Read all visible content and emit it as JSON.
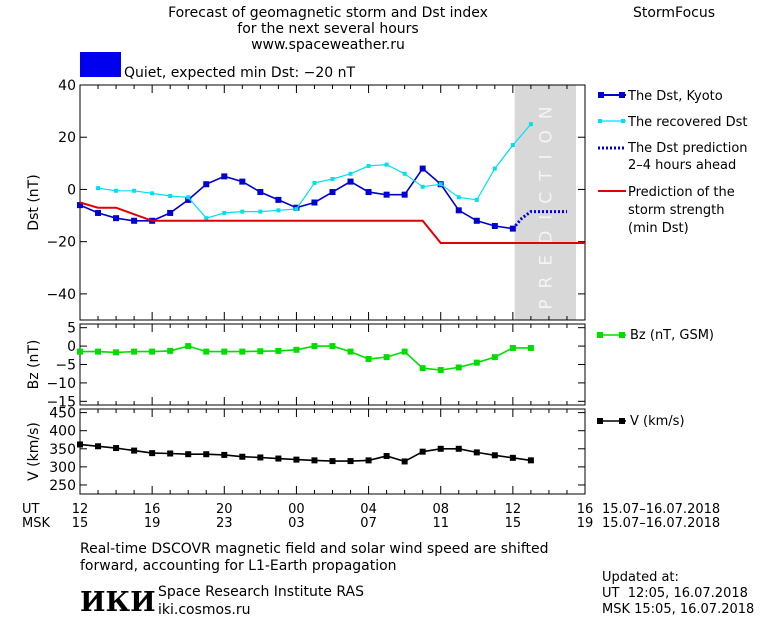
{
  "header": {
    "title_line1": "Forecast of geomagnetic storm and Dst index",
    "title_line2": "for the next several hours",
    "website": "www.spaceweather.ru",
    "brand": "StormFocus",
    "status_text": "Quiet, expected min Dst: −20 nT",
    "status_color": "#0000ee"
  },
  "prediction_label": "PREDICTION",
  "chart_data": [
    {
      "type": "line",
      "ylabel": "Dst (nT)",
      "ylim": [
        -50,
        40
      ],
      "yticks": [
        40,
        20,
        0,
        -20,
        -40
      ],
      "xlim": [
        12,
        40
      ],
      "prediction_zone": [
        36.1,
        39.5
      ],
      "series": [
        {
          "name": "The Dst, Kyoto",
          "color": "#0000d0",
          "marker": "square",
          "x": [
            12,
            13,
            14,
            15,
            16,
            17,
            18,
            19,
            20,
            21,
            22,
            23,
            24,
            25,
            26,
            27,
            28,
            29,
            30,
            31,
            32,
            33,
            34,
            35,
            36
          ],
          "values": [
            -6,
            -9,
            -11,
            -12,
            -12,
            -9,
            -4,
            2,
            5,
            3,
            -1,
            -4,
            -7,
            -5,
            -1,
            3,
            -1,
            -2,
            -2,
            8,
            2,
            -8,
            -12,
            -14,
            -15
          ]
        },
        {
          "name": "The recovered Dst",
          "color": "#00e0f0",
          "marker": "square-small",
          "x": [
            13,
            14,
            15,
            16,
            17,
            18,
            19,
            20,
            21,
            22,
            23,
            24,
            25,
            26,
            27,
            28,
            29,
            30,
            31,
            32,
            33,
            34,
            35,
            36,
            37
          ],
          "values": [
            0.5,
            -0.5,
            -0.5,
            -1.5,
            -2.5,
            -3,
            -11,
            -9,
            -8.5,
            -8.5,
            -8,
            -7.5,
            2.5,
            4,
            6,
            9,
            9.5,
            6,
            1,
            2,
            -3,
            -4,
            8,
            17,
            25
          ]
        },
        {
          "name": "The Dst prediction\n2–4 hours ahead",
          "color": "#0000d0",
          "style": "dotted",
          "x": [
            36,
            36.5,
            37,
            38,
            39
          ],
          "values": [
            -15,
            -11,
            -8.5,
            -8.5,
            -8.5
          ]
        },
        {
          "name": "Prediction of the\nstorm strength\n(min Dst)",
          "color": "#e00000",
          "style": "step",
          "x": [
            12,
            13,
            14,
            16,
            26,
            27,
            31,
            32,
            40
          ],
          "values": [
            -5,
            -7,
            -7,
            -12,
            -12,
            -12,
            -12,
            -20.5,
            -20.5
          ]
        }
      ]
    },
    {
      "type": "line",
      "ylabel": "Bz (nT)",
      "ylim": [
        -16,
        6
      ],
      "yticks": [
        5,
        0,
        -5,
        -10,
        -15
      ],
      "xlim": [
        12,
        40
      ],
      "series": [
        {
          "name": "Bz (nT, GSM)",
          "color": "#00dd00",
          "marker": "square",
          "x": [
            12,
            13,
            14,
            15,
            16,
            17,
            18,
            19,
            20,
            21,
            22,
            23,
            24,
            25,
            26,
            27,
            28,
            29,
            30,
            31,
            32,
            33,
            34,
            35,
            36,
            37
          ],
          "values": [
            -1.5,
            -1.5,
            -1.7,
            -1.5,
            -1.5,
            -1.3,
            0,
            -1.5,
            -1.5,
            -1.5,
            -1.4,
            -1.3,
            -1,
            0,
            0,
            -1.5,
            -3.5,
            -3,
            -1.5,
            -6,
            -6.5,
            -5.8,
            -4.5,
            -3,
            -0.5,
            -0.5
          ]
        }
      ]
    },
    {
      "type": "line",
      "ylabel": "V (km/s)",
      "ylim": [
        225,
        460
      ],
      "yticks": [
        450,
        400,
        350,
        300,
        250
      ],
      "xlim": [
        12,
        40
      ],
      "series": [
        {
          "name": "V (km/s)",
          "color": "#000000",
          "marker": "square",
          "x": [
            12,
            13,
            14,
            15,
            16,
            17,
            18,
            19,
            20,
            21,
            22,
            23,
            24,
            25,
            26,
            27,
            28,
            29,
            30,
            31,
            32,
            33,
            34,
            35,
            36,
            37
          ],
          "values": [
            362,
            357,
            352,
            345,
            338,
            337,
            335,
            335,
            333,
            328,
            326,
            323,
            320,
            318,
            316,
            316,
            318,
            330,
            315,
            342,
            350,
            350,
            340,
            332,
            325,
            318
          ]
        }
      ]
    }
  ],
  "xaxis": {
    "ut_label": "UT",
    "msk_label": "MSK",
    "ticks_ut": [
      "12",
      "16",
      "20",
      "00",
      "04",
      "08",
      "12",
      "16"
    ],
    "ticks_msk": [
      "15",
      "19",
      "23",
      "03",
      "07",
      "11",
      "15",
      "19"
    ],
    "tick_hours": [
      12,
      16,
      20,
      24,
      28,
      32,
      36,
      40
    ],
    "date_range": "15.07–16.07.2018"
  },
  "footer": {
    "note_line1": "Real-time DSCOVR magnetic field and solar wind speed are shifted",
    "note_line2": "forward, accounting for L1-Earth propagation",
    "institute_logo": "ИКИ",
    "institute_name": "Space Research Institute RAS",
    "institute_site": "iki.cosmos.ru",
    "updated_label": "Updated at:",
    "updated_ut": "UT  12:05, 16.07.2018",
    "updated_msk": "MSK 15:05, 16.07.2018"
  }
}
